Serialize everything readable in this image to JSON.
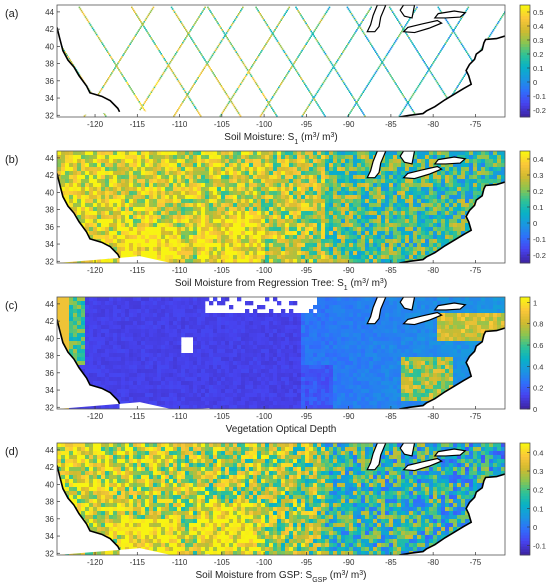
{
  "chart_data": [
    {
      "type": "heatmap",
      "panel_label": "(a)",
      "xlabel_main": "Soil Moisture: S",
      "xlabel_sub": "1",
      "xlabel_unit": " (m",
      "xlabel_sup1": "3",
      "xlabel_mid": "/ m",
      "xlabel_sup2": "3",
      "xlabel_end": ")",
      "xticks": [
        -120,
        -115,
        -110,
        -105,
        -100,
        -95,
        -90,
        -85,
        -80,
        -75
      ],
      "yticks": [
        32,
        34,
        36,
        38,
        40,
        42,
        44
      ],
      "xlim": [
        -124.5,
        -71.5
      ],
      "ylim": [
        31.8,
        44.8
      ],
      "colorbar_ticks": [
        0.5,
        0.4,
        0.3,
        0.2,
        0.1,
        0,
        -0.1,
        -0.2
      ],
      "colorbar_range": [
        -0.25,
        0.55
      ],
      "pattern": "swaths"
    },
    {
      "type": "heatmap",
      "panel_label": "(b)",
      "xlabel_main": "Soil Moisture from Regression Tree: S",
      "xlabel_sub": "1",
      "xlabel_unit": " (m",
      "xlabel_sup1": "3",
      "xlabel_mid": "/ m",
      "xlabel_sup2": "3",
      "xlabel_end": ")",
      "xticks": [
        -120,
        -115,
        -110,
        -105,
        -100,
        -95,
        -90,
        -85,
        -80,
        -75
      ],
      "yticks": [
        32,
        34,
        36,
        38,
        40,
        42,
        44
      ],
      "xlim": [
        -124.5,
        -71.5
      ],
      "ylim": [
        31.8,
        44.8
      ],
      "colorbar_ticks": [
        0.4,
        0.3,
        0.2,
        0.1,
        0,
        -0.1,
        -0.2
      ],
      "colorbar_range": [
        -0.25,
        0.45
      ],
      "pattern": "soil"
    },
    {
      "type": "heatmap",
      "panel_label": "(c)",
      "xlabel_main": "Vegetation Optical Depth",
      "xlabel_sub": "",
      "xlabel_unit": "",
      "xlabel_sup1": "",
      "xlabel_mid": "",
      "xlabel_sup2": "",
      "xlabel_end": "",
      "xticks": [
        -120,
        -115,
        -110,
        -105,
        -100,
        -95,
        -90,
        -85,
        -80,
        -75
      ],
      "yticks": [
        32,
        34,
        36,
        38,
        40,
        42,
        44
      ],
      "xlim": [
        -124.5,
        -71.5
      ],
      "ylim": [
        31.8,
        44.8
      ],
      "colorbar_ticks": [
        1,
        0.8,
        0.6,
        0.4,
        0.2,
        0
      ],
      "colorbar_range": [
        0,
        1.05
      ],
      "pattern": "vod"
    },
    {
      "type": "heatmap",
      "panel_label": "(d)",
      "xlabel_main": "Soil Moisture from GSP: S",
      "xlabel_sub": "GSP",
      "xlabel_unit": " (m",
      "xlabel_sup1": "3",
      "xlabel_mid": "/ m",
      "xlabel_sup2": "3",
      "xlabel_end": ")",
      "xticks": [
        -120,
        -115,
        -110,
        -105,
        -100,
        -95,
        -90,
        -85,
        -80,
        -75
      ],
      "yticks": [
        32,
        34,
        36,
        38,
        40,
        42,
        44
      ],
      "xlim": [
        -124.5,
        -71.5
      ],
      "ylim": [
        31.8,
        44.8
      ],
      "colorbar_ticks": [
        0.4,
        0.3,
        0.2,
        0.1,
        0,
        -0.1
      ],
      "colorbar_range": [
        -0.15,
        0.45
      ],
      "pattern": "soil"
    }
  ],
  "colormap": [
    "#3e26a8",
    "#4743f0",
    "#2f6ffb",
    "#1a96e1",
    "#08b2c6",
    "#2fc295",
    "#8cc550",
    "#d1ba2f",
    "#fbc73a",
    "#f8f412"
  ],
  "colors": {
    "land_outline": "#000000",
    "water_mask": "#ffffff",
    "frame": "#555555"
  }
}
